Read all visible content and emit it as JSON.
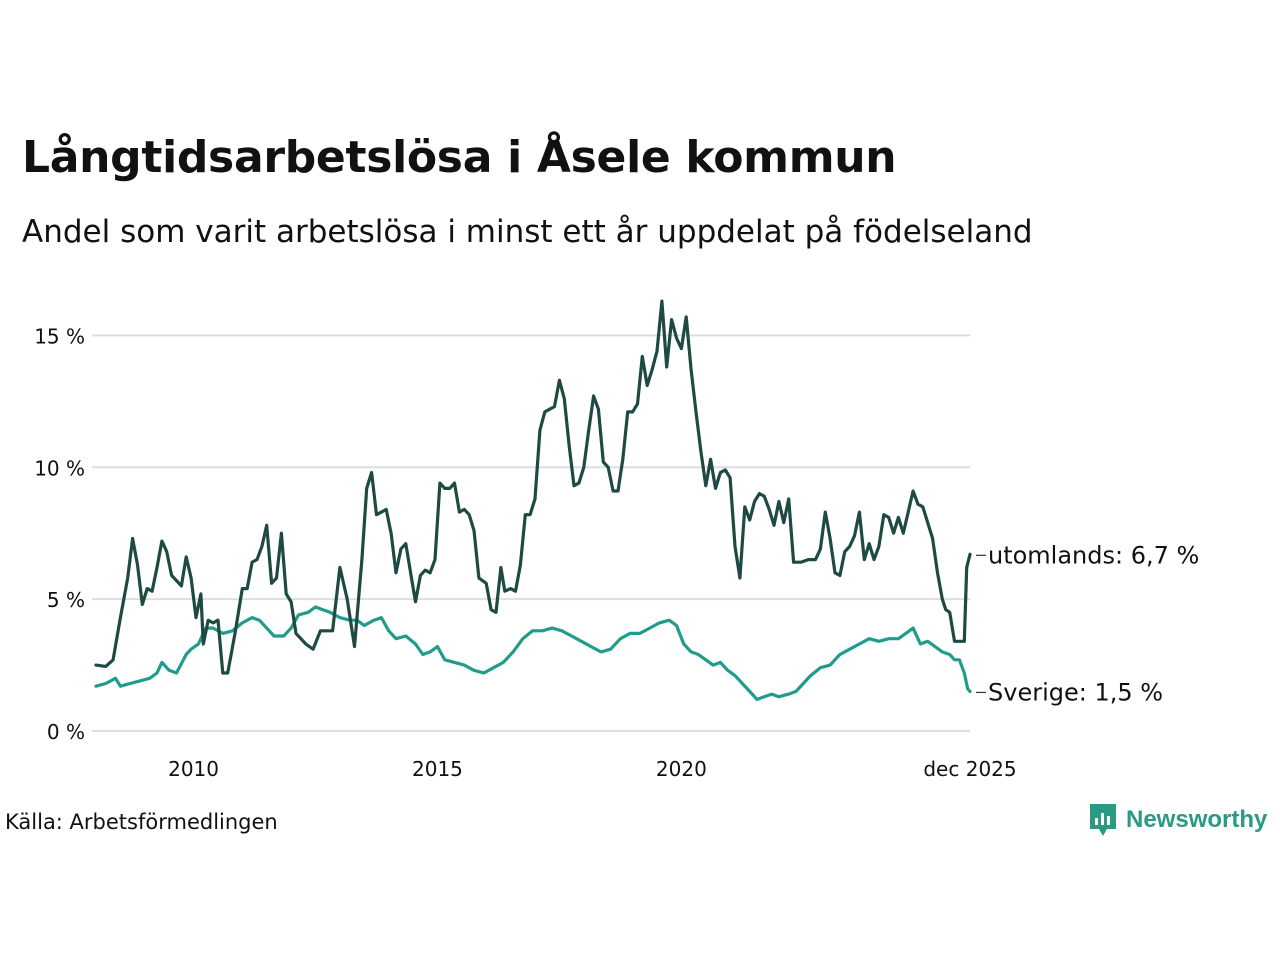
{
  "title": "Långtidsarbetslösa i Åsele kommun",
  "subtitle": "Andel som varit arbetslösa i minst ett år uppdelat på födelseland",
  "source": "Källa: Arbetsförmedlingen",
  "brand": "Newsworthy",
  "colors": {
    "utomlands": "#1f4a44",
    "sverige": "#1f9c8a",
    "grid": "#dddde3",
    "brand": "#2a9a85"
  },
  "chart_data": {
    "type": "line",
    "title": "Långtidsarbetslösa i Åsele kommun",
    "subtitle": "Andel som varit arbetslösa i minst ett år uppdelat på födelseland",
    "xlabel": "",
    "ylabel": "",
    "x_range": [
      2008.0,
      2025.917
    ],
    "ylim": [
      0,
      16
    ],
    "y_ticks": [
      0,
      5,
      10,
      15
    ],
    "y_tick_labels": [
      "0 %",
      "5 %",
      "10 %",
      "15 %"
    ],
    "x_ticks": [
      2010.0,
      2015.0,
      2020.0,
      2025.917
    ],
    "x_tick_labels": [
      "2010",
      "2015",
      "2020",
      "dec 2025"
    ],
    "grid": true,
    "series": [
      {
        "name": "utomlands",
        "end_label": "utomlands: 6,7 %",
        "points": [
          [
            2008.0,
            2.5
          ],
          [
            2008.2,
            2.45
          ],
          [
            2008.35,
            2.7
          ],
          [
            2008.5,
            4.3
          ],
          [
            2008.65,
            5.8
          ],
          [
            2008.75,
            7.3
          ],
          [
            2008.85,
            6.3
          ],
          [
            2008.95,
            4.8
          ],
          [
            2009.05,
            5.4
          ],
          [
            2009.15,
            5.3
          ],
          [
            2009.25,
            6.2
          ],
          [
            2009.35,
            7.2
          ],
          [
            2009.45,
            6.8
          ],
          [
            2009.55,
            5.9
          ],
          [
            2009.75,
            5.5
          ],
          [
            2009.85,
            6.6
          ],
          [
            2009.95,
            5.8
          ],
          [
            2010.05,
            4.3
          ],
          [
            2010.15,
            5.2
          ],
          [
            2010.2,
            3.3
          ],
          [
            2010.3,
            4.2
          ],
          [
            2010.4,
            4.1
          ],
          [
            2010.5,
            4.2
          ],
          [
            2010.6,
            2.2
          ],
          [
            2010.7,
            2.2
          ],
          [
            2010.85,
            3.7
          ],
          [
            2011.0,
            5.4
          ],
          [
            2011.1,
            5.4
          ],
          [
            2011.2,
            6.4
          ],
          [
            2011.3,
            6.5
          ],
          [
            2011.4,
            7.0
          ],
          [
            2011.5,
            7.8
          ],
          [
            2011.6,
            5.6
          ],
          [
            2011.7,
            5.8
          ],
          [
            2011.8,
            7.5
          ],
          [
            2011.9,
            5.2
          ],
          [
            2012.0,
            4.9
          ],
          [
            2012.1,
            3.7
          ],
          [
            2012.3,
            3.3
          ],
          [
            2012.45,
            3.1
          ],
          [
            2012.6,
            3.8
          ],
          [
            2012.75,
            3.8
          ],
          [
            2012.85,
            3.8
          ],
          [
            2013.0,
            6.2
          ],
          [
            2013.15,
            5.0
          ],
          [
            2013.3,
            3.2
          ],
          [
            2013.45,
            6.5
          ],
          [
            2013.55,
            9.2
          ],
          [
            2013.65,
            9.8
          ],
          [
            2013.75,
            8.2
          ],
          [
            2013.85,
            8.3
          ],
          [
            2013.95,
            8.4
          ],
          [
            2014.05,
            7.5
          ],
          [
            2014.15,
            6.0
          ],
          [
            2014.25,
            6.9
          ],
          [
            2014.35,
            7.1
          ],
          [
            2014.45,
            6.0
          ],
          [
            2014.55,
            4.9
          ],
          [
            2014.65,
            5.9
          ],
          [
            2014.75,
            6.1
          ],
          [
            2014.85,
            6.0
          ],
          [
            2014.95,
            6.5
          ],
          [
            2015.05,
            9.4
          ],
          [
            2015.15,
            9.2
          ],
          [
            2015.25,
            9.2
          ],
          [
            2015.35,
            9.4
          ],
          [
            2015.45,
            8.3
          ],
          [
            2015.55,
            8.4
          ],
          [
            2015.65,
            8.2
          ],
          [
            2015.75,
            7.6
          ],
          [
            2015.85,
            5.8
          ],
          [
            2016.0,
            5.6
          ],
          [
            2016.1,
            4.6
          ],
          [
            2016.2,
            4.5
          ],
          [
            2016.3,
            6.2
          ],
          [
            2016.38,
            5.3
          ],
          [
            2016.5,
            5.4
          ],
          [
            2016.6,
            5.3
          ],
          [
            2016.7,
            6.3
          ],
          [
            2016.8,
            8.2
          ],
          [
            2016.9,
            8.2
          ],
          [
            2017.0,
            8.8
          ],
          [
            2017.1,
            11.4
          ],
          [
            2017.2,
            12.1
          ],
          [
            2017.3,
            12.2
          ],
          [
            2017.4,
            12.3
          ],
          [
            2017.5,
            13.3
          ],
          [
            2017.6,
            12.6
          ],
          [
            2017.7,
            10.8
          ],
          [
            2017.8,
            9.3
          ],
          [
            2017.9,
            9.4
          ],
          [
            2018.0,
            10.0
          ],
          [
            2018.1,
            11.4
          ],
          [
            2018.2,
            12.7
          ],
          [
            2018.3,
            12.2
          ],
          [
            2018.4,
            10.2
          ],
          [
            2018.5,
            10.0
          ],
          [
            2018.6,
            9.1
          ],
          [
            2018.7,
            9.1
          ],
          [
            2018.8,
            10.3
          ],
          [
            2018.9,
            12.1
          ],
          [
            2019.0,
            12.1
          ],
          [
            2019.1,
            12.4
          ],
          [
            2019.2,
            14.2
          ],
          [
            2019.3,
            13.1
          ],
          [
            2019.4,
            13.7
          ],
          [
            2019.5,
            14.4
          ],
          [
            2019.6,
            16.3
          ],
          [
            2019.7,
            13.8
          ],
          [
            2019.8,
            15.6
          ],
          [
            2019.9,
            14.9
          ],
          [
            2020.0,
            14.5
          ],
          [
            2020.1,
            15.7
          ],
          [
            2020.2,
            13.7
          ],
          [
            2020.3,
            12.1
          ],
          [
            2020.4,
            10.6
          ],
          [
            2020.5,
            9.3
          ],
          [
            2020.6,
            10.3
          ],
          [
            2020.7,
            9.2
          ],
          [
            2020.8,
            9.8
          ],
          [
            2020.9,
            9.9
          ],
          [
            2021.0,
            9.6
          ],
          [
            2021.1,
            7.0
          ],
          [
            2021.2,
            5.8
          ],
          [
            2021.3,
            8.5
          ],
          [
            2021.4,
            8.0
          ],
          [
            2021.5,
            8.7
          ],
          [
            2021.6,
            9.0
          ],
          [
            2021.7,
            8.9
          ],
          [
            2021.8,
            8.4
          ],
          [
            2021.9,
            7.8
          ],
          [
            2022.0,
            8.7
          ],
          [
            2022.1,
            7.9
          ],
          [
            2022.2,
            8.8
          ],
          [
            2022.3,
            6.4
          ],
          [
            2022.45,
            6.4
          ],
          [
            2022.6,
            6.5
          ],
          [
            2022.75,
            6.5
          ],
          [
            2022.85,
            6.9
          ],
          [
            2022.95,
            8.3
          ],
          [
            2023.05,
            7.3
          ],
          [
            2023.15,
            6.0
          ],
          [
            2023.25,
            5.9
          ],
          [
            2023.35,
            6.8
          ],
          [
            2023.45,
            7.0
          ],
          [
            2023.55,
            7.4
          ],
          [
            2023.65,
            8.3
          ],
          [
            2023.75,
            6.5
          ],
          [
            2023.85,
            7.1
          ],
          [
            2023.95,
            6.5
          ],
          [
            2024.05,
            7.0
          ],
          [
            2024.15,
            8.2
          ],
          [
            2024.25,
            8.1
          ],
          [
            2024.35,
            7.5
          ],
          [
            2024.45,
            8.1
          ],
          [
            2024.55,
            7.5
          ],
          [
            2024.65,
            8.3
          ],
          [
            2024.75,
            9.1
          ],
          [
            2024.85,
            8.6
          ],
          [
            2024.95,
            8.5
          ],
          [
            2025.05,
            7.9
          ],
          [
            2025.15,
            7.3
          ],
          [
            2025.25,
            6.0
          ],
          [
            2025.35,
            5.0
          ],
          [
            2025.42,
            4.6
          ],
          [
            2025.5,
            4.5
          ],
          [
            2025.6,
            3.4
          ],
          [
            2025.7,
            3.4
          ],
          [
            2025.8,
            3.4
          ],
          [
            2025.85,
            6.2
          ],
          [
            2025.917,
            6.7
          ]
        ]
      },
      {
        "name": "Sverige",
        "end_label": "Sverige: 1,5 %",
        "points": [
          [
            2008.0,
            1.7
          ],
          [
            2008.2,
            1.8
          ],
          [
            2008.4,
            2.0
          ],
          [
            2008.5,
            1.7
          ],
          [
            2008.7,
            1.8
          ],
          [
            2008.9,
            1.9
          ],
          [
            2009.1,
            2.0
          ],
          [
            2009.25,
            2.2
          ],
          [
            2009.35,
            2.6
          ],
          [
            2009.5,
            2.3
          ],
          [
            2009.65,
            2.2
          ],
          [
            2009.85,
            2.9
          ],
          [
            2009.95,
            3.1
          ],
          [
            2010.1,
            3.3
          ],
          [
            2010.25,
            3.9
          ],
          [
            2010.4,
            3.9
          ],
          [
            2010.6,
            3.7
          ],
          [
            2010.8,
            3.8
          ],
          [
            2011.0,
            4.1
          ],
          [
            2011.2,
            4.3
          ],
          [
            2011.35,
            4.2
          ],
          [
            2011.5,
            3.9
          ],
          [
            2011.65,
            3.6
          ],
          [
            2011.85,
            3.6
          ],
          [
            2012.0,
            3.9
          ],
          [
            2012.15,
            4.4
          ],
          [
            2012.35,
            4.5
          ],
          [
            2012.5,
            4.7
          ],
          [
            2012.65,
            4.6
          ],
          [
            2012.8,
            4.5
          ],
          [
            2013.0,
            4.3
          ],
          [
            2013.2,
            4.2
          ],
          [
            2013.35,
            4.2
          ],
          [
            2013.5,
            4.0
          ],
          [
            2013.7,
            4.2
          ],
          [
            2013.85,
            4.3
          ],
          [
            2014.0,
            3.8
          ],
          [
            2014.15,
            3.5
          ],
          [
            2014.35,
            3.6
          ],
          [
            2014.55,
            3.3
          ],
          [
            2014.7,
            2.9
          ],
          [
            2014.85,
            3.0
          ],
          [
            2015.0,
            3.2
          ],
          [
            2015.15,
            2.7
          ],
          [
            2015.35,
            2.6
          ],
          [
            2015.55,
            2.5
          ],
          [
            2015.75,
            2.3
          ],
          [
            2015.95,
            2.2
          ],
          [
            2016.15,
            2.4
          ],
          [
            2016.35,
            2.6
          ],
          [
            2016.55,
            3.0
          ],
          [
            2016.75,
            3.5
          ],
          [
            2016.95,
            3.8
          ],
          [
            2017.15,
            3.8
          ],
          [
            2017.35,
            3.9
          ],
          [
            2017.55,
            3.8
          ],
          [
            2017.75,
            3.6
          ],
          [
            2017.95,
            3.4
          ],
          [
            2018.15,
            3.2
          ],
          [
            2018.35,
            3.0
          ],
          [
            2018.55,
            3.1
          ],
          [
            2018.75,
            3.5
          ],
          [
            2018.95,
            3.7
          ],
          [
            2019.15,
            3.7
          ],
          [
            2019.35,
            3.9
          ],
          [
            2019.55,
            4.1
          ],
          [
            2019.75,
            4.2
          ],
          [
            2019.9,
            4.0
          ],
          [
            2020.05,
            3.3
          ],
          [
            2020.2,
            3.0
          ],
          [
            2020.35,
            2.9
          ],
          [
            2020.5,
            2.7
          ],
          [
            2020.65,
            2.5
          ],
          [
            2020.8,
            2.6
          ],
          [
            2020.95,
            2.3
          ],
          [
            2021.1,
            2.1
          ],
          [
            2021.25,
            1.8
          ],
          [
            2021.4,
            1.5
          ],
          [
            2021.55,
            1.2
          ],
          [
            2021.7,
            1.3
          ],
          [
            2021.85,
            1.4
          ],
          [
            2022.0,
            1.3
          ],
          [
            2022.2,
            1.4
          ],
          [
            2022.35,
            1.5
          ],
          [
            2022.5,
            1.8
          ],
          [
            2022.65,
            2.1
          ],
          [
            2022.85,
            2.4
          ],
          [
            2023.05,
            2.5
          ],
          [
            2023.25,
            2.9
          ],
          [
            2023.45,
            3.1
          ],
          [
            2023.65,
            3.3
          ],
          [
            2023.85,
            3.5
          ],
          [
            2024.05,
            3.4
          ],
          [
            2024.25,
            3.5
          ],
          [
            2024.45,
            3.5
          ],
          [
            2024.6,
            3.7
          ],
          [
            2024.75,
            3.9
          ],
          [
            2024.9,
            3.3
          ],
          [
            2025.05,
            3.4
          ],
          [
            2025.2,
            3.2
          ],
          [
            2025.35,
            3.0
          ],
          [
            2025.5,
            2.9
          ],
          [
            2025.6,
            2.7
          ],
          [
            2025.7,
            2.7
          ],
          [
            2025.8,
            2.2
          ],
          [
            2025.87,
            1.6
          ],
          [
            2025.917,
            1.5
          ]
        ]
      }
    ]
  }
}
